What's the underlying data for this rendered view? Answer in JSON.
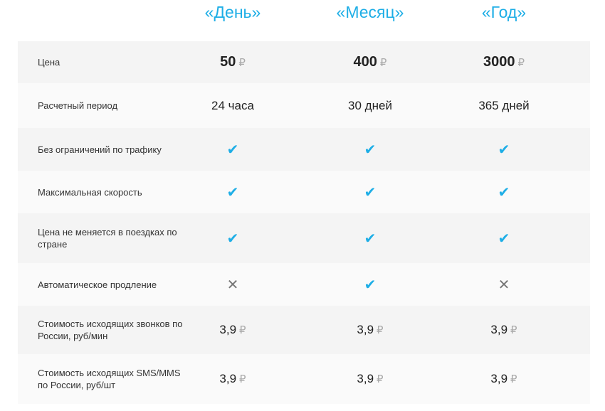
{
  "plans": [
    "«День»",
    "«Месяц»",
    "«Год»"
  ],
  "colors": {
    "accent": "#1eaee6",
    "row_dark": "#f4f4f4",
    "row_light": "#fafafa"
  },
  "currency_symbol": "₽",
  "rows": [
    {
      "label": "Цена",
      "type": "price",
      "values": [
        "50",
        "400",
        "3000"
      ]
    },
    {
      "label": "Расчетный период",
      "type": "text",
      "values": [
        "24 часа",
        "30 дней",
        "365 дней"
      ]
    },
    {
      "label": "Без ограничений по трафику",
      "type": "bool",
      "values": [
        true,
        true,
        true
      ]
    },
    {
      "label": "Максимальная скорость",
      "type": "bool",
      "values": [
        true,
        true,
        true
      ]
    },
    {
      "label": "Цена не меняется в поездках по стране",
      "type": "bool",
      "values": [
        true,
        true,
        true
      ]
    },
    {
      "label": "Автоматическое продление",
      "type": "bool",
      "values": [
        false,
        true,
        false
      ]
    },
    {
      "label": "Стоимость исходящих звонков по России, руб/мин",
      "type": "money",
      "values": [
        "3,9",
        "3,9",
        "3,9"
      ]
    },
    {
      "label": "Стоимость исходящих SMS/MMS по России, руб/шт",
      "type": "money",
      "values": [
        "3,9",
        "3,9",
        "3,9"
      ]
    }
  ],
  "icons": {
    "yes": "check-icon",
    "no": "cross-icon"
  }
}
